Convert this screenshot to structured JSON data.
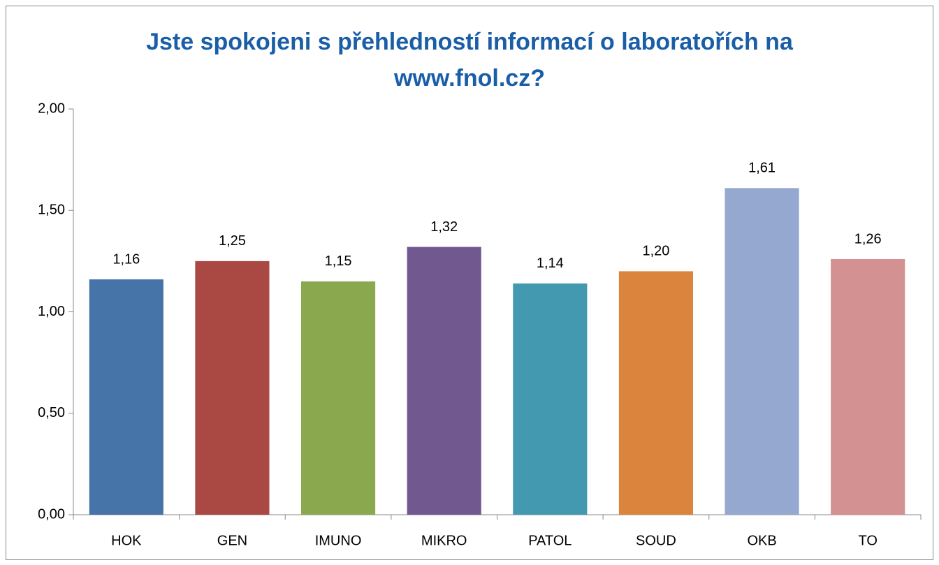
{
  "chart_data": {
    "type": "bar",
    "title": [
      "Jste spokojeni s přehledností informací o laboratořích na",
      "www.fnol.cz?"
    ],
    "categories": [
      "HOK",
      "GEN",
      "IMUNO",
      "MIKRO",
      "PATOL",
      "SOUD",
      "OKB",
      "TO"
    ],
    "values": [
      1.16,
      1.25,
      1.15,
      1.32,
      1.14,
      1.2,
      1.61,
      1.26
    ],
    "value_labels": [
      "1,16",
      "1,25",
      "1,15",
      "1,32",
      "1,14",
      "1,20",
      "1,61",
      "1,26"
    ],
    "colors": [
      "#4674a8",
      "#aa4844",
      "#8aa84e",
      "#71588f",
      "#4299b0",
      "#db843d",
      "#95a9d0",
      "#d39192"
    ],
    "ylim": [
      0,
      2
    ],
    "yticks": [
      {
        "value": 0,
        "label": "0,00"
      },
      {
        "value": 0.5,
        "label": "0,50"
      },
      {
        "value": 1,
        "label": "1,00"
      },
      {
        "value": 1.5,
        "label": "1,50"
      },
      {
        "value": 2,
        "label": "2,00"
      }
    ],
    "grid": false
  }
}
